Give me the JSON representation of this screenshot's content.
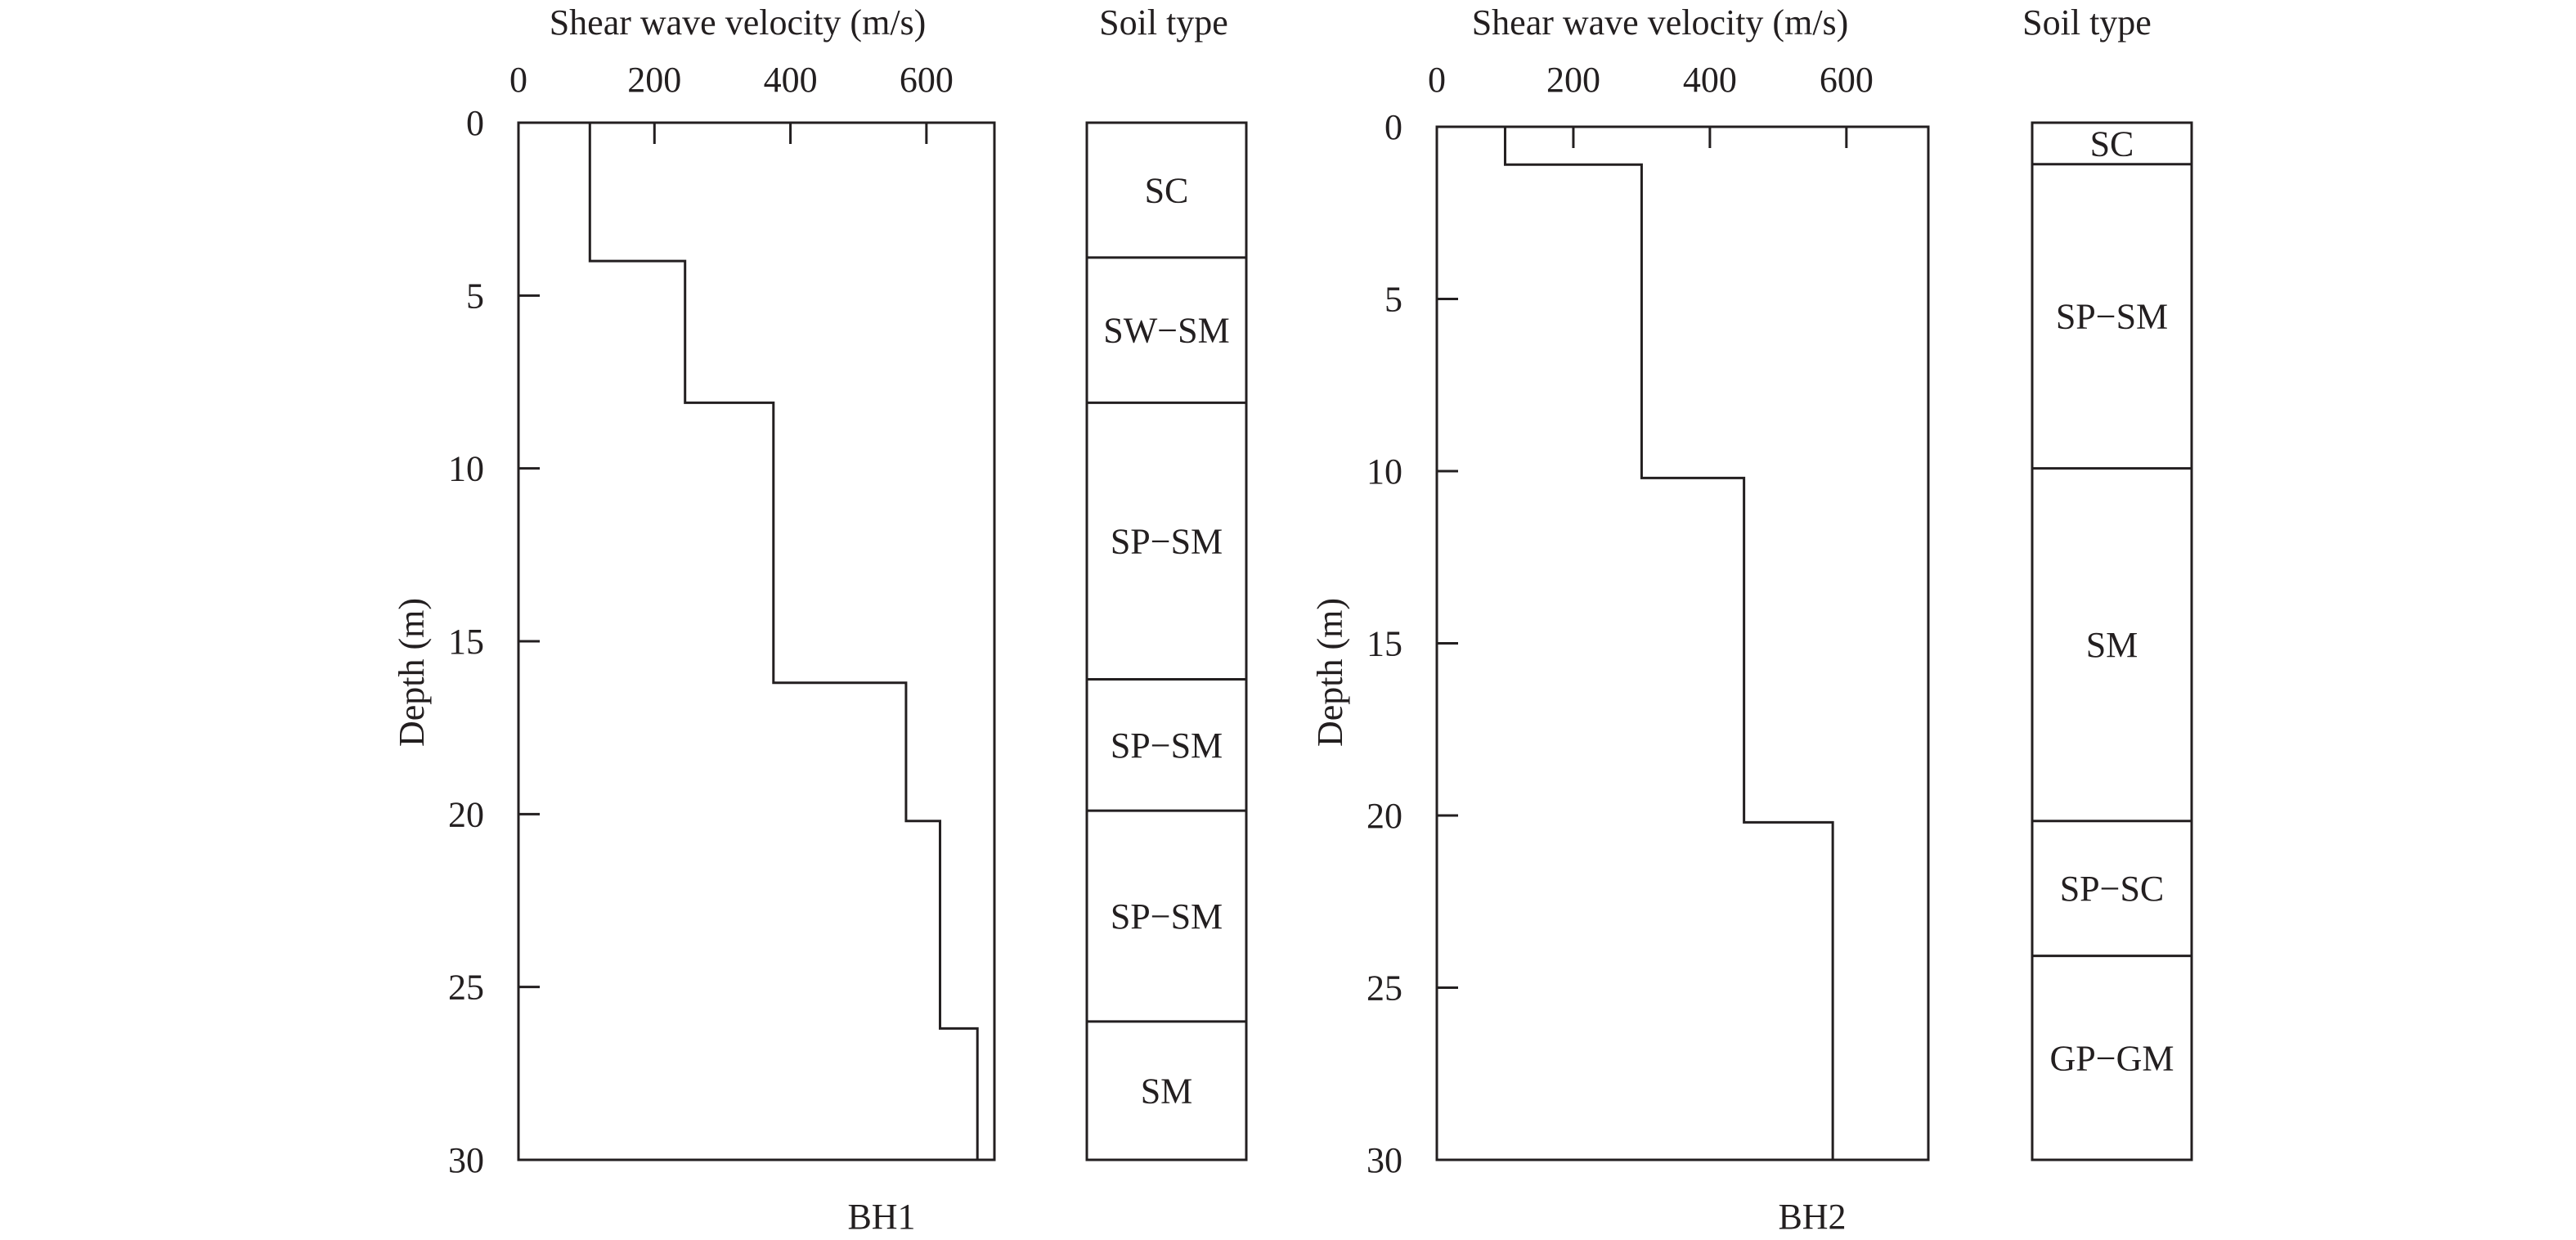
{
  "figure": {
    "x_axis_label": "Shear wave velocity (m/s)",
    "y_axis_label": "Depth (m)",
    "soil_column_label": "Soil type",
    "x_ticks": [
      0,
      200,
      400,
      600
    ],
    "y_ticks": [
      0,
      5,
      10,
      15,
      20,
      25,
      30
    ]
  },
  "chart_data": [
    {
      "type": "line",
      "title": "BH1",
      "xlabel": "Shear wave velocity (m/s)",
      "ylabel": "Depth (m)",
      "xlim": [
        0,
        700
      ],
      "ylim": [
        30,
        0
      ],
      "x_ticks": [
        0,
        200,
        400,
        600
      ],
      "y_ticks": [
        0,
        5,
        10,
        15,
        20,
        25,
        30
      ],
      "series": [
        {
          "vs_profile_steps": [
            {
              "top": 0,
              "bottom": 4,
              "vs": 105
            },
            {
              "top": 4,
              "bottom": 8.1,
              "vs": 245
            },
            {
              "top": 8.1,
              "bottom": 16.2,
              "vs": 375
            },
            {
              "top": 16.2,
              "bottom": 20.2,
              "vs": 570
            },
            {
              "top": 20.2,
              "bottom": 26.2,
              "vs": 620
            },
            {
              "top": 26.2,
              "bottom": 30,
              "vs": 675
            }
          ]
        }
      ],
      "soil_layers": [
        {
          "top": 0,
          "bottom": 3.9,
          "label": "SC"
        },
        {
          "top": 3.9,
          "bottom": 8.1,
          "label": "SW−SM"
        },
        {
          "top": 8.1,
          "bottom": 16.1,
          "label": "SP−SM"
        },
        {
          "top": 16.1,
          "bottom": 19.9,
          "label": "SP−SM"
        },
        {
          "top": 19.9,
          "bottom": 26,
          "label": "SP−SM"
        },
        {
          "top": 26,
          "bottom": 30,
          "label": "SM"
        }
      ]
    },
    {
      "type": "line",
      "title": "BH2",
      "xlabel": "Shear wave velocity (m/s)",
      "ylabel": "Depth (m)",
      "xlim": [
        0,
        720
      ],
      "ylim": [
        30,
        0
      ],
      "x_ticks": [
        0,
        200,
        400,
        600
      ],
      "y_ticks": [
        0,
        5,
        10,
        15,
        20,
        25,
        30
      ],
      "series": [
        {
          "vs_profile_steps": [
            {
              "top": 0,
              "bottom": 1.1,
              "vs": 100
            },
            {
              "top": 1.1,
              "bottom": 10.2,
              "vs": 300
            },
            {
              "top": 10.2,
              "bottom": 20.2,
              "vs": 450
            },
            {
              "top": 20.2,
              "bottom": 30,
              "vs": 580
            }
          ]
        }
      ],
      "soil_layers": [
        {
          "top": 0,
          "bottom": 1.2,
          "label": "SC"
        },
        {
          "top": 1.2,
          "bottom": 10,
          "label": "SP−SM"
        },
        {
          "top": 10,
          "bottom": 20.2,
          "label": "SM"
        },
        {
          "top": 20.2,
          "bottom": 24.1,
          "label": "SP−SC"
        },
        {
          "top": 24.1,
          "bottom": 30,
          "label": "GP−GM"
        }
      ]
    }
  ]
}
